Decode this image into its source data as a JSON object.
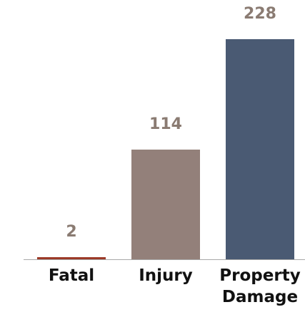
{
  "chart_data": {
    "type": "bar",
    "categories": [
      "Fatal",
      "Injury",
      "Property Damage"
    ],
    "values": [
      2,
      114,
      228
    ],
    "colors": [
      "#9c3a28",
      "#93807a",
      "#4a5a73"
    ]
  }
}
